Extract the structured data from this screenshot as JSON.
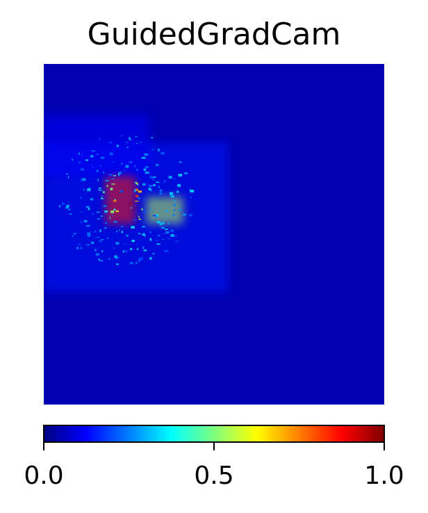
{
  "chart_data": {
    "type": "heatmap",
    "title": "GuidedGradCam",
    "colormap": "jet",
    "colormap_stops": [
      "#00007f",
      "#0000ff",
      "#007fff",
      "#00ffff",
      "#7fff7f",
      "#ffff00",
      "#ff7f00",
      "#ff0000",
      "#7f0000"
    ],
    "value_range": [
      0.0,
      1.0
    ],
    "colorbar": {
      "orientation": "horizontal",
      "placement": "bottom",
      "ticks": [
        0.0,
        0.5,
        1.0
      ],
      "tick_labels": [
        "0.0",
        "0.5",
        "1.0"
      ]
    },
    "axes_visible": false,
    "grid": false,
    "regions": [
      {
        "desc_value": 0.05,
        "x": [
          0.0,
          1.0
        ],
        "y": [
          0.0,
          1.0
        ]
      },
      {
        "desc_value": 0.15,
        "x": [
          0.0,
          0.54
        ],
        "y": [
          0.23,
          0.67
        ]
      },
      {
        "desc_value": 0.12,
        "x": [
          0.0,
          0.31
        ],
        "y": [
          0.15,
          0.33
        ]
      },
      {
        "desc_value": 0.85,
        "x": [
          0.18,
          0.27
        ],
        "y": [
          0.33,
          0.47
        ]
      },
      {
        "desc_value": 0.55,
        "x": [
          0.3,
          0.41
        ],
        "y": [
          0.39,
          0.47
        ]
      }
    ]
  }
}
